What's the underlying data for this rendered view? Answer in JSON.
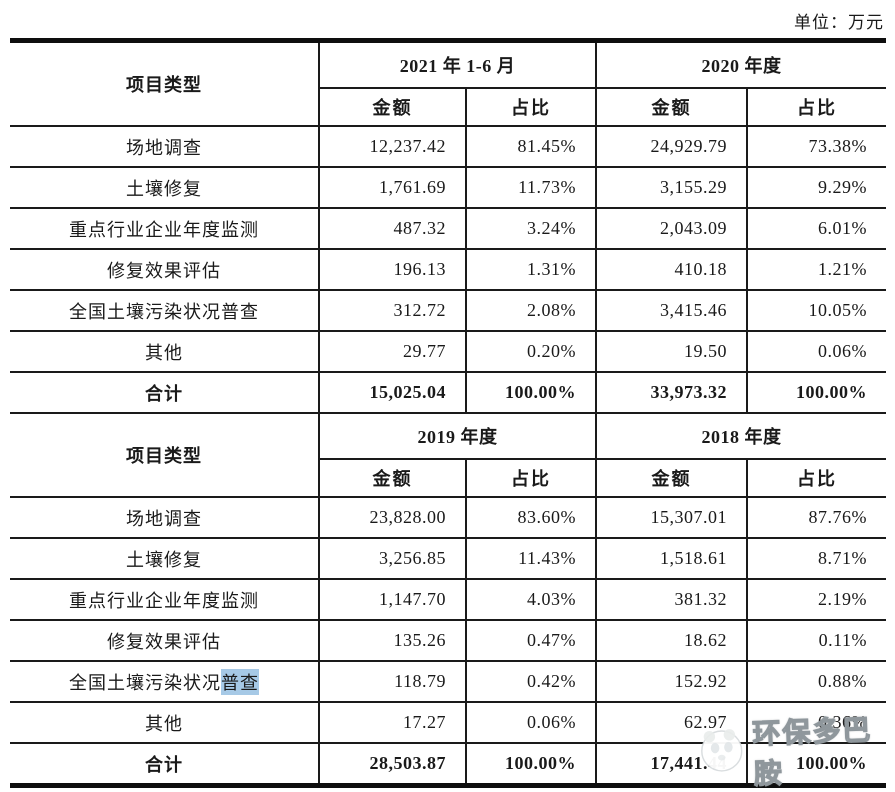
{
  "unit_label": "单位：万元",
  "colors": {
    "highlight": "#a6c9e6",
    "text": "#1a1a1a",
    "border": "#1a1a1a",
    "watermark_outline": "#8f979c"
  },
  "tables": [
    {
      "corner_header": "项目类型",
      "period_headers": [
        "2021 年 1-6 月",
        "2020 年度"
      ],
      "sub_headers": [
        "金额",
        "占比"
      ],
      "rows": [
        {
          "category": "场地调查",
          "values": [
            "12,237.42",
            "81.45%",
            "24,929.79",
            "73.38%"
          ]
        },
        {
          "category": "土壤修复",
          "values": [
            "1,761.69",
            "11.73%",
            "3,155.29",
            "9.29%"
          ]
        },
        {
          "category": "重点行业企业年度监测",
          "values": [
            "487.32",
            "3.24%",
            "2,043.09",
            "6.01%"
          ]
        },
        {
          "category": "修复效果评估",
          "values": [
            "196.13",
            "1.31%",
            "410.18",
            "1.21%"
          ]
        },
        {
          "category": "全国土壤污染状况普查",
          "values": [
            "312.72",
            "2.08%",
            "3,415.46",
            "10.05%"
          ]
        },
        {
          "category": "其他",
          "values": [
            "29.77",
            "0.20%",
            "19.50",
            "0.06%"
          ]
        },
        {
          "category": "合计",
          "total": true,
          "values": [
            "15,025.04",
            "100.00%",
            "33,973.32",
            "100.00%"
          ]
        }
      ]
    },
    {
      "corner_header": "项目类型",
      "period_headers": [
        "2019 年度",
        "2018 年度"
      ],
      "sub_headers": [
        "金额",
        "占比"
      ],
      "rows": [
        {
          "category": "场地调查",
          "values": [
            "23,828.00",
            "83.60%",
            "15,307.01",
            "87.76%"
          ]
        },
        {
          "category": "土壤修复",
          "values": [
            "3,256.85",
            "11.43%",
            "1,518.61",
            "8.71%"
          ]
        },
        {
          "category": "重点行业企业年度监测",
          "values": [
            "1,147.70",
            "4.03%",
            "381.32",
            "2.19%"
          ]
        },
        {
          "category": "修复效果评估",
          "values": [
            "135.26",
            "0.47%",
            "18.62",
            "0.11%"
          ]
        },
        {
          "category_prefix": "全国土壤污染状况",
          "category_highlight": "普查",
          "values": [
            "118.79",
            "0.42%",
            "152.92",
            "0.88%"
          ]
        },
        {
          "category": "其他",
          "values": [
            "17.27",
            "0.06%",
            "62.97",
            "0.36%"
          ]
        },
        {
          "category": "合计",
          "total": true,
          "values": [
            "28,503.87",
            "100.00%",
            "17,441.44",
            "100.00%"
          ]
        }
      ]
    }
  ],
  "watermark": {
    "text": "环保多巴胺",
    "logo": "panda-logo"
  }
}
